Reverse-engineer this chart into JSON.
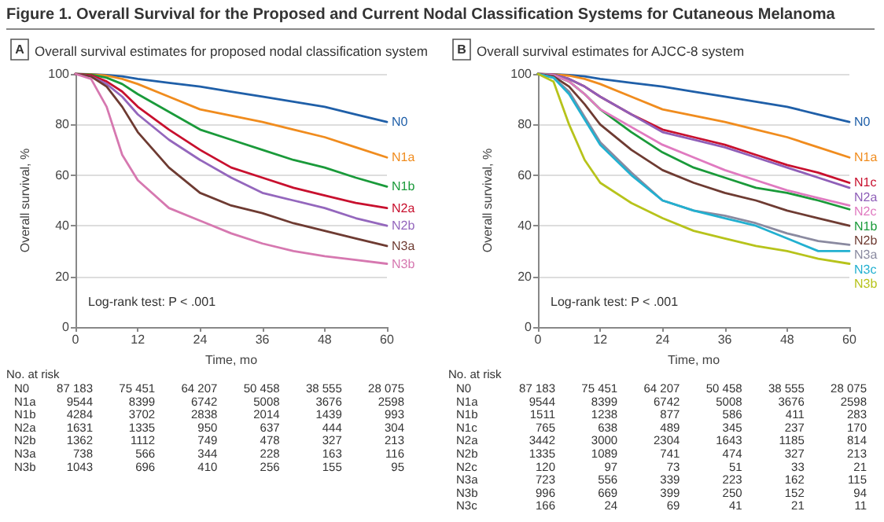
{
  "chart_data": [
    {
      "type": "line",
      "title": "Figure 1. Overall Survival for the Proposed and Current Nodal Classification Systems for Cutaneous Melanoma",
      "subtitle": "Overall survival estimates for proposed nodal classification system",
      "xlabel": "Time, mo",
      "ylabel": "Overall survival, %",
      "x": [
        0,
        3,
        6,
        9,
        12,
        18,
        24,
        30,
        36,
        42,
        48,
        54,
        60
      ],
      "xlim": [
        0,
        60
      ],
      "xticks": [
        0,
        12,
        24,
        36,
        48,
        60
      ],
      "ylim": [
        0,
        100
      ],
      "yticks": [
        0,
        20,
        40,
        60,
        80,
        100
      ],
      "grid": "y",
      "marker": "none",
      "line_style": "solid",
      "series": [
        {
          "name": "N0",
          "color": "#1f5fa8",
          "values": [
            100,
            99.9,
            99.6,
            99,
            98,
            96.5,
            95,
            93,
            91,
            89,
            87,
            84,
            81
          ]
        },
        {
          "name": "N1a",
          "color": "#f08c1e",
          "values": [
            100,
            99.8,
            99.3,
            98,
            96,
            91,
            86,
            83.5,
            81,
            78,
            75,
            71,
            67
          ]
        },
        {
          "name": "N1b",
          "color": "#1a9a3a",
          "values": [
            100,
            99.7,
            98.5,
            96,
            92,
            85,
            78,
            74,
            70,
            66,
            63,
            59,
            55.5
          ]
        },
        {
          "name": "N2a",
          "color": "#c8102e",
          "values": [
            100,
            99.5,
            97,
            93,
            87,
            78,
            70,
            63,
            59,
            55,
            52,
            49,
            47
          ]
        },
        {
          "name": "N2b",
          "color": "#9467bd",
          "values": [
            100,
            99,
            96,
            91,
            84,
            74,
            66,
            59,
            53,
            50,
            47,
            43,
            40
          ]
        },
        {
          "name": "N3a",
          "color": "#6e3b32",
          "values": [
            100,
            99,
            95,
            87,
            77,
            63,
            53,
            48,
            45,
            41,
            38,
            35,
            32
          ]
        },
        {
          "name": "N3b",
          "color": "#d678b0",
          "values": [
            100,
            98,
            87,
            68,
            58,
            47,
            42,
            37,
            33,
            30,
            28,
            26.5,
            25
          ]
        }
      ],
      "annotations": [
        "A",
        "Log-rank test: P < .001",
        "No. at risk",
        "N0\t87 183\t75 451\t64 207\t50 458\t38 555\t28 075",
        "N1a\t9544\t8399\t6742\t5008\t3676\t2598",
        "N1b\t4284\t3702\t2838\t2014\t1439\t993",
        "N2a\t1631\t1335\t950\t637\t444\t304",
        "N2b\t1362\t1112\t749\t478\t327\t213",
        "N3a\t738\t566\t344\t228\t163\t116",
        "N3b\t1043\t696\t410\t256\t155\t95"
      ]
    },
    {
      "type": "line",
      "subtitle": "Overall survival estimates for AJCC-8 system",
      "xlabel": "Time, mo",
      "ylabel": "Overall survival, %",
      "x": [
        0,
        3,
        6,
        9,
        12,
        18,
        24,
        30,
        36,
        42,
        48,
        54,
        60
      ],
      "xlim": [
        0,
        60
      ],
      "xticks": [
        0,
        12,
        24,
        36,
        48,
        60
      ],
      "ylim": [
        0,
        100
      ],
      "yticks": [
        0,
        20,
        40,
        60,
        80,
        100
      ],
      "grid": "y",
      "marker": "none",
      "line_style": "solid",
      "series": [
        {
          "name": "N0",
          "color": "#1f5fa8",
          "values": [
            100,
            99.9,
            99.6,
            99,
            98,
            96.5,
            95,
            93,
            91,
            89,
            87,
            84,
            81
          ]
        },
        {
          "name": "N1a",
          "color": "#f08c1e",
          "values": [
            100,
            99.8,
            99.3,
            98,
            96,
            91,
            86,
            83.5,
            81,
            78,
            75,
            71,
            67
          ]
        },
        {
          "name": "N1c",
          "color": "#c8102e",
          "values": [
            100,
            99.7,
            98,
            95,
            91,
            84,
            78,
            75,
            72,
            68,
            64,
            61,
            57
          ]
        },
        {
          "name": "N2a",
          "color": "#8f5fb8",
          "values": [
            100,
            99.7,
            98,
            95,
            91,
            84,
            77,
            74,
            71,
            67,
            63,
            59,
            55
          ]
        },
        {
          "name": "N1b",
          "color": "#1a9a3a",
          "values": [
            100,
            99.5,
            97,
            92,
            86,
            77,
            69,
            63,
            59,
            55,
            53,
            50,
            46.5
          ]
        },
        {
          "name": "N2c",
          "color": "#e07ac0",
          "values": [
            100,
            99.5,
            97,
            92,
            86,
            79,
            72,
            67,
            62,
            58,
            54,
            51,
            48
          ]
        },
        {
          "name": "N2b",
          "color": "#6e3b32",
          "values": [
            100,
            99,
            95,
            88,
            80,
            70,
            62,
            57,
            53,
            50,
            46,
            43,
            40
          ]
        },
        {
          "name": "N3a",
          "color": "#8a8aa0",
          "values": [
            100,
            98.5,
            93,
            83,
            73,
            61,
            50,
            46,
            44,
            41,
            37,
            34,
            32.5
          ]
        },
        {
          "name": "N3c",
          "color": "#22b0d0",
          "values": [
            100,
            98.5,
            92,
            82,
            72,
            60,
            50,
            46,
            43,
            40,
            35,
            30,
            30
          ]
        },
        {
          "name": "N3b",
          "color": "#b7c31b",
          "values": [
            100,
            97,
            80,
            66,
            57,
            49,
            43,
            38,
            35,
            32,
            30,
            27,
            25
          ]
        }
      ],
      "annotations": [
        "B",
        "Log-rank test: P < .001",
        "No. at risk",
        "N0\t87 183\t75 451\t64 207\t50 458\t38 555\t28 075",
        "N1a\t9544\t8399\t6742\t5008\t3676\t2598",
        "N1b\t1511\t1238\t877\t586\t411\t283",
        "N1c\t765\t638\t489\t345\t237\t170",
        "N2a\t3442\t3000\t2304\t1643\t1185\t814",
        "N2b\t1335\t1089\t741\t474\t327\t213",
        "N2c\t120\t97\t73\t51\t33\t21",
        "N3a\t723\t556\t339\t223\t162\t115",
        "N3b\t996\t669\t399\t250\t152\t94",
        "N3c\t166\t24\t69\t41\t21\t11"
      ]
    }
  ]
}
